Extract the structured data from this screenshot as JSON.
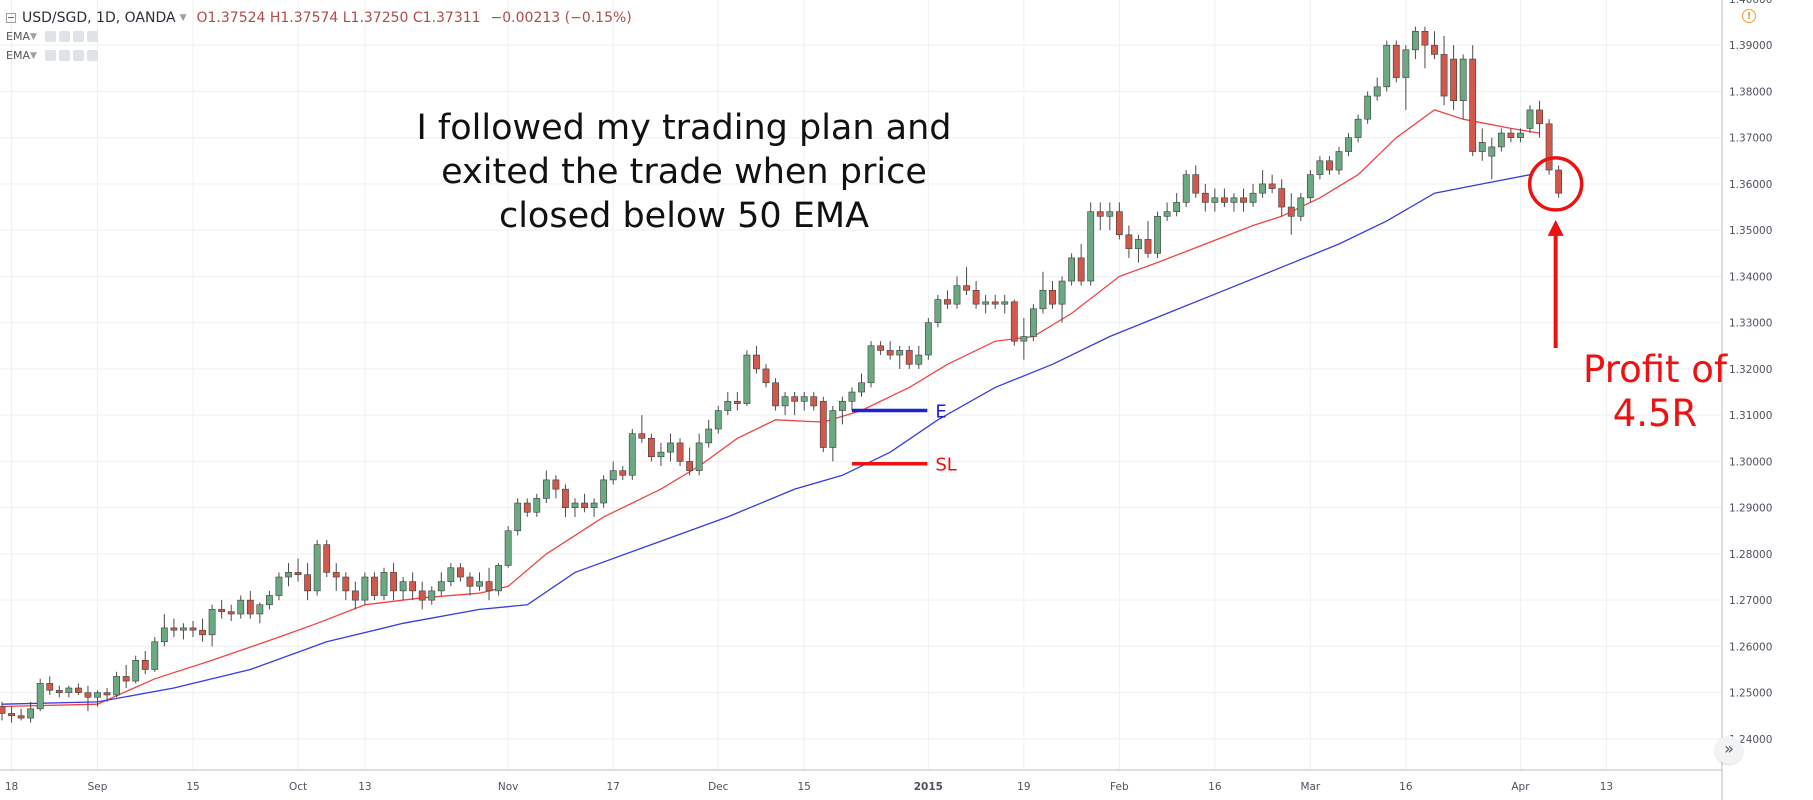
{
  "legend": {
    "symbol": "USD/SGD, 1D, OANDA",
    "ohlc": "O1.37524  H1.37574  L1.37250  C1.37311",
    "change": "−0.00213 (−0.15%)",
    "indicators": [
      "EMA",
      "EMA"
    ]
  },
  "annotations": {
    "note_lines": [
      "I followed my trading plan and",
      "exited the trade when price",
      "closed below 50 EMA"
    ],
    "profit_lines": [
      "Profit of",
      "4.5R"
    ],
    "entry_label": "E",
    "stoploss_label": "SL"
  },
  "colors": {
    "up_candle": "#6aa982",
    "down_candle": "#d2584b",
    "ema_fast": "#ef4444",
    "ema_slow": "#3a3ae0",
    "entry": "#1f1fd6",
    "stoploss": "#ee1111",
    "circle": "#ee1111",
    "grid": "#eef0f3"
  },
  "chart_data": {
    "type": "candlestick",
    "symbol": "USD/SGD",
    "timeframe": "1D",
    "ylim": [
      1.235,
      1.4015
    ],
    "y_ticks": [
      "1.24000",
      "1.25000",
      "1.26000",
      "1.27000",
      "1.28000",
      "1.29000",
      "1.30000",
      "1.31000",
      "1.32000",
      "1.33000",
      "1.34000",
      "1.35000",
      "1.36000",
      "1.37000",
      "1.38000",
      "1.39000",
      "1.40000"
    ],
    "x_ticks": [
      {
        "label": "18",
        "bar": 1
      },
      {
        "label": "Sep",
        "bar": 10
      },
      {
        "label": "15",
        "bar": 20
      },
      {
        "label": "Oct",
        "bar": 31
      },
      {
        "label": "13",
        "bar": 38
      },
      {
        "label": "Nov",
        "bar": 53
      },
      {
        "label": "17",
        "bar": 64
      },
      {
        "label": "Dec",
        "bar": 75
      },
      {
        "label": "15",
        "bar": 84
      },
      {
        "label": "2015",
        "bar": 97,
        "bold": true
      },
      {
        "label": "19",
        "bar": 107
      },
      {
        "label": "Feb",
        "bar": 117
      },
      {
        "label": "16",
        "bar": 127
      },
      {
        "label": "Mar",
        "bar": 137
      },
      {
        "label": "16",
        "bar": 147
      },
      {
        "label": "Apr",
        "bar": 159
      },
      {
        "label": "13",
        "bar": 168
      }
    ],
    "candles": [
      [
        1.247,
        1.248,
        1.244,
        1.2455
      ],
      [
        1.2455,
        1.247,
        1.2435,
        1.245
      ],
      [
        1.245,
        1.2465,
        1.244,
        1.2445
      ],
      [
        1.2445,
        1.248,
        1.2435,
        1.2465
      ],
      [
        1.2465,
        1.253,
        1.246,
        1.252
      ],
      [
        1.252,
        1.2535,
        1.2495,
        1.2505
      ],
      [
        1.2505,
        1.2515,
        1.249,
        1.25
      ],
      [
        1.25,
        1.2515,
        1.249,
        1.251
      ],
      [
        1.251,
        1.252,
        1.2495,
        1.25
      ],
      [
        1.25,
        1.2515,
        1.246,
        1.249
      ],
      [
        1.249,
        1.2505,
        1.247,
        1.25
      ],
      [
        1.25,
        1.251,
        1.248,
        1.2495
      ],
      [
        1.2495,
        1.2545,
        1.249,
        1.2535
      ],
      [
        1.2535,
        1.256,
        1.251,
        1.2525
      ],
      [
        1.2525,
        1.258,
        1.252,
        1.257
      ],
      [
        1.257,
        1.259,
        1.254,
        1.255
      ],
      [
        1.255,
        1.262,
        1.2545,
        1.261
      ],
      [
        1.261,
        1.267,
        1.26,
        1.264
      ],
      [
        1.264,
        1.266,
        1.262,
        1.2635
      ],
      [
        1.2635,
        1.265,
        1.2615,
        1.264
      ],
      [
        1.264,
        1.2655,
        1.262,
        1.2635
      ],
      [
        1.2635,
        1.266,
        1.261,
        1.2625
      ],
      [
        1.2625,
        1.269,
        1.26,
        1.268
      ],
      [
        1.268,
        1.27,
        1.266,
        1.2675
      ],
      [
        1.2675,
        1.269,
        1.2655,
        1.267
      ],
      [
        1.267,
        1.271,
        1.266,
        1.27
      ],
      [
        1.27,
        1.272,
        1.266,
        1.267
      ],
      [
        1.267,
        1.2695,
        1.265,
        1.269
      ],
      [
        1.269,
        1.272,
        1.268,
        1.271
      ],
      [
        1.271,
        1.276,
        1.27,
        1.275
      ],
      [
        1.275,
        1.278,
        1.273,
        1.276
      ],
      [
        1.276,
        1.279,
        1.274,
        1.2755
      ],
      [
        1.2755,
        1.278,
        1.27,
        1.272
      ],
      [
        1.272,
        1.283,
        1.271,
        1.282
      ],
      [
        1.282,
        1.283,
        1.275,
        1.276
      ],
      [
        1.276,
        1.278,
        1.272,
        1.275
      ],
      [
        1.275,
        1.276,
        1.27,
        1.272
      ],
      [
        1.272,
        1.274,
        1.268,
        1.27
      ],
      [
        1.27,
        1.276,
        1.269,
        1.275
      ],
      [
        1.275,
        1.276,
        1.27,
        1.271
      ],
      [
        1.271,
        1.277,
        1.27,
        1.276
      ],
      [
        1.276,
        1.278,
        1.27,
        1.272
      ],
      [
        1.272,
        1.275,
        1.27,
        1.274
      ],
      [
        1.274,
        1.276,
        1.27,
        1.272
      ],
      [
        1.272,
        1.274,
        1.268,
        1.27
      ],
      [
        1.27,
        1.273,
        1.269,
        1.272
      ],
      [
        1.272,
        1.276,
        1.271,
        1.274
      ],
      [
        1.274,
        1.278,
        1.273,
        1.277
      ],
      [
        1.277,
        1.278,
        1.274,
        1.275
      ],
      [
        1.275,
        1.276,
        1.271,
        1.273
      ],
      [
        1.273,
        1.276,
        1.272,
        1.274
      ],
      [
        1.274,
        1.277,
        1.27,
        1.272
      ],
      [
        1.272,
        1.278,
        1.271,
        1.2775
      ],
      [
        1.2775,
        1.286,
        1.277,
        1.285
      ],
      [
        1.285,
        1.292,
        1.284,
        1.291
      ],
      [
        1.291,
        1.292,
        1.288,
        1.289
      ],
      [
        1.289,
        1.293,
        1.288,
        1.292
      ],
      [
        1.292,
        1.298,
        1.291,
        1.296
      ],
      [
        1.296,
        1.297,
        1.292,
        1.294
      ],
      [
        1.294,
        1.295,
        1.288,
        1.29
      ],
      [
        1.29,
        1.292,
        1.288,
        1.291
      ],
      [
        1.291,
        1.293,
        1.289,
        1.29
      ],
      [
        1.29,
        1.292,
        1.288,
        1.291
      ],
      [
        1.291,
        1.297,
        1.29,
        1.296
      ],
      [
        1.296,
        1.3,
        1.295,
        1.298
      ],
      [
        1.298,
        1.299,
        1.296,
        1.297
      ],
      [
        1.297,
        1.307,
        1.296,
        1.306
      ],
      [
        1.306,
        1.31,
        1.304,
        1.305
      ],
      [
        1.305,
        1.306,
        1.3,
        1.301
      ],
      [
        1.301,
        1.304,
        1.299,
        1.302
      ],
      [
        1.302,
        1.306,
        1.3,
        1.304
      ],
      [
        1.304,
        1.305,
        1.299,
        1.3
      ],
      [
        1.3,
        1.303,
        1.297,
        1.298
      ],
      [
        1.298,
        1.306,
        1.297,
        1.304
      ],
      [
        1.304,
        1.309,
        1.303,
        1.307
      ],
      [
        1.307,
        1.312,
        1.306,
        1.311
      ],
      [
        1.311,
        1.315,
        1.31,
        1.313
      ],
      [
        1.313,
        1.315,
        1.311,
        1.3125
      ],
      [
        1.3125,
        1.324,
        1.312,
        1.323
      ],
      [
        1.323,
        1.325,
        1.319,
        1.32
      ],
      [
        1.32,
        1.321,
        1.316,
        1.317
      ],
      [
        1.317,
        1.318,
        1.311,
        1.312
      ],
      [
        1.312,
        1.315,
        1.31,
        1.314
      ],
      [
        1.314,
        1.315,
        1.31,
        1.313
      ],
      [
        1.313,
        1.315,
        1.311,
        1.314
      ],
      [
        1.314,
        1.315,
        1.311,
        1.312
      ],
      [
        1.313,
        1.314,
        1.302,
        1.303
      ],
      [
        1.303,
        1.312,
        1.3,
        1.311
      ],
      [
        1.311,
        1.314,
        1.308,
        1.313
      ],
      [
        1.313,
        1.316,
        1.311,
        1.315
      ],
      [
        1.315,
        1.319,
        1.314,
        1.317
      ],
      [
        1.317,
        1.326,
        1.316,
        1.325
      ],
      [
        1.325,
        1.326,
        1.323,
        1.324
      ],
      [
        1.324,
        1.326,
        1.322,
        1.323
      ],
      [
        1.323,
        1.325,
        1.32,
        1.324
      ],
      [
        1.324,
        1.325,
        1.32,
        1.321
      ],
      [
        1.321,
        1.325,
        1.32,
        1.323
      ],
      [
        1.323,
        1.331,
        1.322,
        1.33
      ],
      [
        1.33,
        1.336,
        1.329,
        1.335
      ],
      [
        1.335,
        1.337,
        1.333,
        1.334
      ],
      [
        1.334,
        1.34,
        1.333,
        1.338
      ],
      [
        1.338,
        1.342,
        1.336,
        1.337
      ],
      [
        1.337,
        1.339,
        1.333,
        1.334
      ],
      [
        1.334,
        1.336,
        1.332,
        1.3345
      ],
      [
        1.3345,
        1.336,
        1.333,
        1.334
      ],
      [
        1.334,
        1.336,
        1.332,
        1.3345
      ],
      [
        1.3345,
        1.335,
        1.325,
        1.326
      ],
      [
        1.326,
        1.331,
        1.322,
        1.327
      ],
      [
        1.327,
        1.334,
        1.326,
        1.333
      ],
      [
        1.333,
        1.341,
        1.332,
        1.337
      ],
      [
        1.337,
        1.339,
        1.333,
        1.334
      ],
      [
        1.334,
        1.34,
        1.33,
        1.339
      ],
      [
        1.339,
        1.345,
        1.338,
        1.344
      ],
      [
        1.344,
        1.347,
        1.338,
        1.339
      ],
      [
        1.339,
        1.356,
        1.338,
        1.354
      ],
      [
        1.354,
        1.356,
        1.35,
        1.353
      ],
      [
        1.353,
        1.356,
        1.35,
        1.354
      ],
      [
        1.354,
        1.356,
        1.348,
        1.349
      ],
      [
        1.349,
        1.351,
        1.344,
        1.346
      ],
      [
        1.346,
        1.349,
        1.343,
        1.348
      ],
      [
        1.348,
        1.352,
        1.344,
        1.345
      ],
      [
        1.345,
        1.354,
        1.344,
        1.353
      ],
      [
        1.353,
        1.356,
        1.352,
        1.354
      ],
      [
        1.354,
        1.358,
        1.353,
        1.356
      ],
      [
        1.356,
        1.363,
        1.355,
        1.362
      ],
      [
        1.362,
        1.364,
        1.357,
        1.358
      ],
      [
        1.358,
        1.36,
        1.354,
        1.356
      ],
      [
        1.356,
        1.359,
        1.354,
        1.357
      ],
      [
        1.357,
        1.359,
        1.355,
        1.356
      ],
      [
        1.356,
        1.358,
        1.354,
        1.357
      ],
      [
        1.357,
        1.359,
        1.354,
        1.356
      ],
      [
        1.356,
        1.36,
        1.355,
        1.358
      ],
      [
        1.358,
        1.363,
        1.357,
        1.36
      ],
      [
        1.36,
        1.362,
        1.358,
        1.359
      ],
      [
        1.359,
        1.361,
        1.353,
        1.355
      ],
      [
        1.355,
        1.358,
        1.349,
        1.353
      ],
      [
        1.353,
        1.358,
        1.352,
        1.357
      ],
      [
        1.357,
        1.363,
        1.356,
        1.362
      ],
      [
        1.362,
        1.366,
        1.361,
        1.365
      ],
      [
        1.365,
        1.366,
        1.362,
        1.363
      ],
      [
        1.363,
        1.368,
        1.362,
        1.367
      ],
      [
        1.367,
        1.371,
        1.366,
        1.37
      ],
      [
        1.37,
        1.375,
        1.369,
        1.374
      ],
      [
        1.374,
        1.38,
        1.373,
        1.379
      ],
      [
        1.379,
        1.383,
        1.378,
        1.381
      ],
      [
        1.381,
        1.391,
        1.38,
        1.39
      ],
      [
        1.39,
        1.391,
        1.382,
        1.383
      ],
      [
        1.383,
        1.39,
        1.376,
        1.389
      ],
      [
        1.389,
        1.394,
        1.387,
        1.393
      ],
      [
        1.393,
        1.394,
        1.385,
        1.39
      ],
      [
        1.39,
        1.393,
        1.387,
        1.388
      ],
      [
        1.388,
        1.392,
        1.377,
        1.379
      ],
      [
        1.387,
        1.39,
        1.376,
        1.378
      ],
      [
        1.378,
        1.388,
        1.374,
        1.387
      ],
      [
        1.387,
        1.39,
        1.366,
        1.367
      ],
      [
        1.367,
        1.372,
        1.365,
        1.369
      ],
      [
        1.366,
        1.37,
        1.361,
        1.368
      ],
      [
        1.368,
        1.372,
        1.367,
        1.371
      ],
      [
        1.371,
        1.372,
        1.369,
        1.37
      ],
      [
        1.37,
        1.372,
        1.369,
        1.371
      ],
      [
        1.372,
        1.377,
        1.371,
        1.376
      ],
      [
        1.376,
        1.378,
        1.37,
        1.373
      ],
      [
        1.373,
        1.374,
        1.362,
        1.363
      ],
      [
        1.363,
        1.364,
        1.357,
        1.358
      ]
    ],
    "series": [
      {
        "kind": "ema",
        "color": "#ef4444",
        "points": [
          [
            0,
            1.247
          ],
          [
            10,
            1.2475
          ],
          [
            16,
            1.253
          ],
          [
            22,
            1.257
          ],
          [
            29,
            1.262
          ],
          [
            33,
            1.265
          ],
          [
            38,
            1.269
          ],
          [
            44,
            1.2705
          ],
          [
            50,
            1.2715
          ],
          [
            53,
            1.273
          ],
          [
            57,
            1.28
          ],
          [
            63,
            1.288
          ],
          [
            69,
            1.294
          ],
          [
            73,
            1.299
          ],
          [
            77,
            1.305
          ],
          [
            81,
            1.309
          ],
          [
            86,
            1.3085
          ],
          [
            90,
            1.311
          ],
          [
            95,
            1.316
          ],
          [
            99,
            1.321
          ],
          [
            104,
            1.326
          ],
          [
            108,
            1.327
          ],
          [
            112,
            1.332
          ],
          [
            117,
            1.34
          ],
          [
            121,
            1.343
          ],
          [
            126,
            1.347
          ],
          [
            131,
            1.351
          ],
          [
            134,
            1.353
          ],
          [
            138,
            1.357
          ],
          [
            142,
            1.362
          ],
          [
            146,
            1.37
          ],
          [
            150,
            1.376
          ],
          [
            153,
            1.374
          ],
          [
            158,
            1.372
          ],
          [
            161,
            1.371
          ]
        ]
      },
      {
        "kind": "ema",
        "color": "#3a3ae0",
        "points": [
          [
            0,
            1.2475
          ],
          [
            10,
            1.248
          ],
          [
            18,
            1.251
          ],
          [
            26,
            1.255
          ],
          [
            34,
            1.261
          ],
          [
            42,
            1.265
          ],
          [
            50,
            1.268
          ],
          [
            55,
            1.269
          ],
          [
            60,
            1.276
          ],
          [
            68,
            1.282
          ],
          [
            76,
            1.288
          ],
          [
            83,
            1.294
          ],
          [
            88,
            1.297
          ],
          [
            93,
            1.302
          ],
          [
            98,
            1.309
          ],
          [
            104,
            1.316
          ],
          [
            110,
            1.321
          ],
          [
            116,
            1.327
          ],
          [
            122,
            1.332
          ],
          [
            128,
            1.337
          ],
          [
            134,
            1.342
          ],
          [
            140,
            1.347
          ],
          [
            145,
            1.352
          ],
          [
            150,
            1.358
          ],
          [
            155,
            1.36
          ],
          [
            160,
            1.362
          ]
        ]
      }
    ],
    "levels": [
      {
        "label": "E",
        "price": 1.311,
        "from_bar": 89,
        "to_bar": 97,
        "color": "#1f1fd6"
      },
      {
        "label": "SL",
        "price": 1.2995,
        "from_bar": 89,
        "to_bar": 97,
        "color": "#ee1111"
      }
    ],
    "exit_marker": {
      "bar": 163,
      "price": 1.36
    }
  }
}
